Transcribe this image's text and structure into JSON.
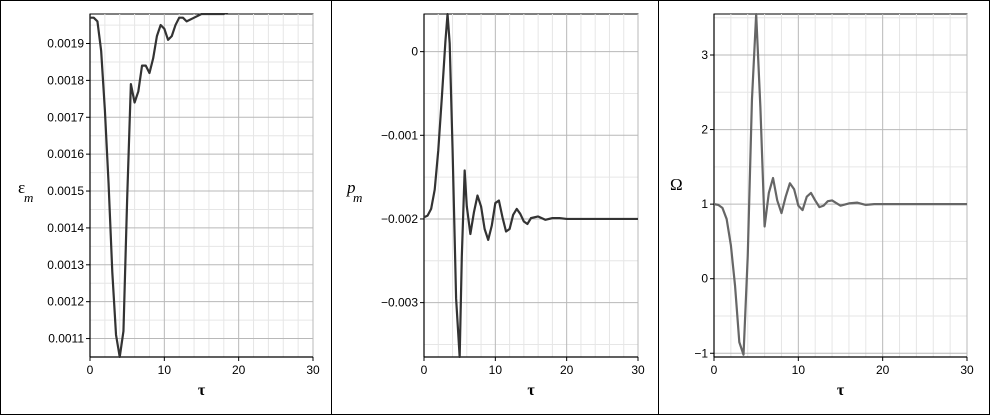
{
  "chart_data": [
    {
      "type": "line",
      "xlabel": "τ",
      "ylabel_main": "ε",
      "ylabel_sub": "m",
      "xlim": [
        0,
        30
      ],
      "ylim": [
        0.00105,
        0.00198
      ],
      "xticks": [
        0,
        10,
        20,
        30
      ],
      "xtick_labels": [
        "0",
        "10",
        "20",
        "30"
      ],
      "yticks": [
        0.0011,
        0.0012,
        0.0013,
        0.0014,
        0.0015,
        0.0016,
        0.0017,
        0.0018,
        0.0019
      ],
      "ytick_labels": [
        "0.0011",
        "0.0012",
        "0.0013",
        "0.0014",
        "0.0015",
        "0.0016",
        "0.0017",
        "0.0018",
        "0.0019"
      ],
      "grid": true,
      "color": "#333333",
      "series": [
        {
          "x": [
            0,
            0.5,
            1,
            1.5,
            2,
            2.5,
            3,
            3.5,
            4,
            4.5,
            5,
            5.5,
            6,
            6.5,
            7,
            7.5,
            8,
            8.5,
            9,
            9.5,
            10,
            10.5,
            11,
            11.5,
            12,
            12.5,
            13,
            14,
            15,
            16,
            17,
            18,
            19,
            20,
            22,
            24,
            26,
            28,
            30
          ],
          "y": [
            0.00197,
            0.00197,
            0.00196,
            0.00188,
            0.00172,
            0.00152,
            0.00128,
            0.00111,
            0.00105,
            0.00112,
            0.00148,
            0.00179,
            0.00174,
            0.00177,
            0.00184,
            0.00184,
            0.00182,
            0.00186,
            0.00192,
            0.00195,
            0.00194,
            0.00191,
            0.00192,
            0.00195,
            0.00197,
            0.00197,
            0.00196,
            0.00197,
            0.00198,
            0.00198,
            0.00198,
            0.00198,
            0.00199,
            0.00199,
            0.00199,
            0.00199,
            0.00199,
            0.00199,
            0.00199
          ]
        }
      ]
    },
    {
      "type": "line",
      "xlabel": "τ",
      "ylabel_main": "p",
      "ylabel_sub": "m",
      "xlim": [
        0,
        30
      ],
      "ylim": [
        -0.00365,
        0.00045
      ],
      "xticks": [
        0,
        10,
        20,
        30
      ],
      "xtick_labels": [
        "0",
        "10",
        "20",
        "30"
      ],
      "yticks": [
        0,
        -0.001,
        -0.002,
        -0.003
      ],
      "ytick_labels": [
        "0",
        "−0.001",
        "−0.002",
        "−0.003"
      ],
      "grid": true,
      "color": "#333333",
      "series": [
        {
          "x": [
            0,
            0.5,
            1,
            1.5,
            2,
            2.5,
            3,
            3.3,
            3.6,
            4,
            4.5,
            5,
            5.3,
            5.7,
            6,
            6.5,
            7,
            7.5,
            8,
            8.5,
            9,
            9.5,
            10,
            10.5,
            11,
            11.5,
            12,
            12.5,
            13,
            13.5,
            14,
            14.5,
            15,
            16,
            17,
            18,
            19,
            20,
            22,
            24,
            26,
            28,
            30
          ],
          "y": [
            -0.00198,
            -0.00196,
            -0.00188,
            -0.00165,
            -0.00118,
            -0.00055,
            0.00012,
            0.00045,
            0.0001,
            -0.00115,
            -0.00295,
            -0.00365,
            -0.00245,
            -0.00142,
            -0.00185,
            -0.00218,
            -0.00192,
            -0.00172,
            -0.00185,
            -0.00212,
            -0.00225,
            -0.00208,
            -0.00181,
            -0.00178,
            -0.00198,
            -0.00215,
            -0.00212,
            -0.00195,
            -0.00188,
            -0.00194,
            -0.00203,
            -0.00206,
            -0.00199,
            -0.00197,
            -0.00201,
            -0.00199,
            -0.00199,
            -0.002,
            -0.002,
            -0.002,
            -0.002,
            -0.002,
            -0.002
          ]
        }
      ]
    },
    {
      "type": "line",
      "xlabel": "τ",
      "ylabel_main": "Ω",
      "ylabel_sub": "",
      "xlim": [
        0,
        30
      ],
      "ylim": [
        -1.05,
        3.55
      ],
      "xticks": [
        0,
        10,
        20,
        30
      ],
      "xtick_labels": [
        "0",
        "10",
        "20",
        "30"
      ],
      "yticks": [
        -1,
        0,
        1,
        2,
        3
      ],
      "ytick_labels": [
        "−1",
        "0",
        "1",
        "2",
        "3"
      ],
      "grid": true,
      "color": "#666666",
      "series": [
        {
          "x": [
            0,
            0.5,
            1,
            1.5,
            2,
            2.5,
            3,
            3.5,
            4,
            4.5,
            5,
            5.5,
            6,
            6.5,
            7,
            7.5,
            8,
            8.5,
            9,
            9.5,
            10,
            10.5,
            11,
            11.5,
            12,
            12.5,
            13,
            13.5,
            14,
            15,
            16,
            17,
            18,
            19,
            20,
            22,
            24,
            26,
            28,
            30
          ],
          "y": [
            1,
            0.99,
            0.95,
            0.8,
            0.45,
            -0.1,
            -0.85,
            -1.02,
            0.3,
            2.4,
            3.55,
            2.3,
            0.7,
            1.15,
            1.35,
            1.05,
            0.88,
            1.1,
            1.28,
            1.2,
            0.98,
            0.92,
            1.1,
            1.15,
            1.05,
            0.96,
            0.98,
            1.04,
            1.05,
            0.98,
            1.01,
            1.02,
            0.99,
            1,
            1,
            1,
            1,
            1,
            1,
            1
          ]
        }
      ]
    }
  ]
}
